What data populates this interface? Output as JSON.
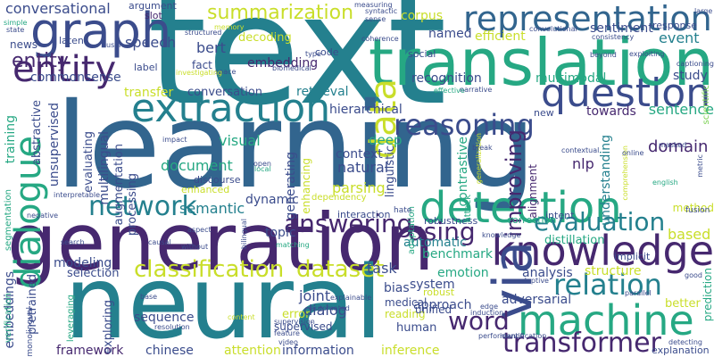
{
  "cloud": {
    "palette": {
      "purple": "#46286f",
      "indigo": "#3b4c8c",
      "blue": "#32658e",
      "teal": "#24808e",
      "green": "#26a883",
      "lime": "#7ad151",
      "yellow": "#c9de2a"
    },
    "words": [
      {
        "text": "text",
        "color": "#24808e"
      },
      {
        "text": "learning",
        "color": "#32658e"
      },
      {
        "text": "generation",
        "color": "#46286f"
      },
      {
        "text": "neural",
        "color": "#24808e"
      },
      {
        "text": "translation",
        "color": "#26a883"
      },
      {
        "text": "graph",
        "color": "#3b4c8c"
      },
      {
        "text": "entity",
        "color": "#46286f"
      },
      {
        "text": "dialogue",
        "color": "#26a883"
      },
      {
        "text": "extraction",
        "color": "#24808e"
      },
      {
        "text": "representation",
        "color": "#32658e"
      },
      {
        "text": "question",
        "color": "#3b4c8c"
      },
      {
        "text": "knowledge",
        "color": "#46286f"
      },
      {
        "text": "detection",
        "color": "#26a883"
      },
      {
        "text": "machine",
        "color": "#26a883"
      },
      {
        "text": "via",
        "color": "#3b4c8c"
      },
      {
        "text": "data",
        "color": "#c9de2a"
      },
      {
        "text": "network",
        "color": "#24808e"
      },
      {
        "text": "classification",
        "color": "#c9de2a"
      },
      {
        "text": "dataset",
        "color": "#c9de2a"
      },
      {
        "text": "relation",
        "color": "#24808e"
      },
      {
        "text": "transformer",
        "color": "#46286f"
      },
      {
        "text": "summarization",
        "color": "#c9de2a"
      },
      {
        "text": "reasoning",
        "color": "#3b4c8c"
      },
      {
        "text": "answering",
        "color": "#46286f"
      },
      {
        "text": "evaluation",
        "color": "#24808e"
      },
      {
        "text": "word",
        "color": "#46286f"
      },
      {
        "text": "using",
        "color": "#46286f"
      },
      {
        "text": "improving",
        "color": "#46286f"
      },
      {
        "text": "conversational",
        "color": "#3b4c8c"
      },
      {
        "text": "entity",
        "color": "#46286f"
      },
      {
        "text": "recognition",
        "color": "#3b4c8c"
      },
      {
        "text": "multimodal",
        "color": "#26a883"
      },
      {
        "text": "sentiment",
        "color": "#3b4c8c"
      },
      {
        "text": "event",
        "color": "#24808e"
      },
      {
        "text": "efficient",
        "color": "#c9de2a"
      },
      {
        "text": "named",
        "color": "#3b4c8c"
      },
      {
        "text": "corpus",
        "color": "#c9de2a"
      },
      {
        "text": "speech",
        "color": "#3b4c8c"
      },
      {
        "text": "bert",
        "color": "#3b4c8c"
      },
      {
        "text": "embedding",
        "color": "#46286f"
      },
      {
        "text": "fact",
        "color": "#3b4c8c"
      },
      {
        "text": "label",
        "color": "#3b4c8c"
      },
      {
        "text": "slot",
        "color": "#46286f"
      },
      {
        "text": "argument",
        "color": "#3b4c8c"
      },
      {
        "text": "decoding",
        "color": "#c9de2a"
      },
      {
        "text": "commonsense",
        "color": "#3b4c8c"
      },
      {
        "text": "transfer",
        "color": "#c9de2a"
      },
      {
        "text": "conversation",
        "color": "#3b4c8c"
      },
      {
        "text": "retrieval",
        "color": "#24808e"
      },
      {
        "text": "study",
        "color": "#3b4c8c"
      },
      {
        "text": "sentence",
        "color": "#26a883"
      },
      {
        "text": "hierarchical",
        "color": "#3b4c8c"
      },
      {
        "text": "towards",
        "color": "#46286f"
      },
      {
        "text": "visual",
        "color": "#26a883"
      },
      {
        "text": "deep",
        "color": "#26a883"
      },
      {
        "text": "context",
        "color": "#3b4c8c"
      },
      {
        "text": "natural",
        "color": "#3b4c8c"
      },
      {
        "text": "document",
        "color": "#26a883"
      },
      {
        "text": "nlp",
        "color": "#46286f"
      },
      {
        "text": "domain",
        "color": "#46286f"
      },
      {
        "text": "semantic",
        "color": "#24808e"
      },
      {
        "text": "dynamic",
        "color": "#3b4c8c"
      },
      {
        "text": "parsing",
        "color": "#c9de2a"
      },
      {
        "text": "topic",
        "color": "#3b4c8c"
      },
      {
        "text": "based",
        "color": "#c9de2a"
      },
      {
        "text": "modeling",
        "color": "#3b4c8c"
      },
      {
        "text": "benchmark",
        "color": "#26a883"
      },
      {
        "text": "automatic",
        "color": "#24808e"
      },
      {
        "text": "distillation",
        "color": "#26a883"
      },
      {
        "text": "task",
        "color": "#3b4c8c"
      },
      {
        "text": "analysis",
        "color": "#3b4c8c"
      },
      {
        "text": "structure",
        "color": "#c9de2a"
      },
      {
        "text": "emotion",
        "color": "#26a883"
      },
      {
        "text": "selection",
        "color": "#3b4c8c"
      },
      {
        "text": "system",
        "color": "#3b4c8c"
      },
      {
        "text": "adversarial",
        "color": "#3b4c8c"
      },
      {
        "text": "joint",
        "color": "#3b4c8c"
      },
      {
        "text": "bias",
        "color": "#3b4c8c"
      },
      {
        "text": "approach",
        "color": "#3b4c8c"
      },
      {
        "text": "error",
        "color": "#c9de2a"
      },
      {
        "text": "dialog",
        "color": "#3b4c8c"
      },
      {
        "text": "sequence",
        "color": "#3b4c8c"
      },
      {
        "text": "supervised",
        "color": "#3b4c8c"
      },
      {
        "text": "human",
        "color": "#3b4c8c"
      },
      {
        "text": "medical",
        "color": "#3b4c8c"
      },
      {
        "text": "reading",
        "color": "#c9de2a"
      },
      {
        "text": "framework",
        "color": "#46286f"
      },
      {
        "text": "chinese",
        "color": "#3b4c8c"
      },
      {
        "text": "attention",
        "color": "#c9de2a"
      },
      {
        "text": "information",
        "color": "#3b4c8c"
      },
      {
        "text": "inference",
        "color": "#c9de2a"
      },
      {
        "text": "better",
        "color": "#c9de2a"
      },
      {
        "text": "exploring",
        "color": "#3b4c8c"
      },
      {
        "text": "leveraging",
        "color": "#26a883"
      },
      {
        "text": "embeddings",
        "color": "#3b4c8c"
      },
      {
        "text": "pretrained",
        "color": "#3b4c8c"
      },
      {
        "text": "multilingual",
        "color": "#3b4c8c"
      },
      {
        "text": "augmentation",
        "color": "#3b4c8c"
      },
      {
        "text": "processing",
        "color": "#3b4c8c"
      },
      {
        "text": "evaluating",
        "color": "#3b4c8c"
      },
      {
        "text": "abstractive",
        "color": "#3b4c8c"
      },
      {
        "text": "unsupervised",
        "color": "#3b4c8c"
      },
      {
        "text": "training",
        "color": "#26a883"
      },
      {
        "text": "segmentation",
        "color": "#26a883"
      },
      {
        "text": "generating",
        "color": "#3b4c8c"
      },
      {
        "text": "enhancing",
        "color": "#c9de2a"
      },
      {
        "text": "linguistic",
        "color": "#3b4c8c"
      },
      {
        "text": "contrastive",
        "color": "#26a883"
      },
      {
        "text": "alignment",
        "color": "#46286f"
      },
      {
        "text": "understanding",
        "color": "#24808e"
      },
      {
        "text": "prediction",
        "color": "#26a883"
      },
      {
        "text": "method",
        "color": "#c9de2a"
      },
      {
        "text": "explanation",
        "color": "#3b4c8c"
      },
      {
        "text": "scientific",
        "color": "#7ad151"
      },
      {
        "text": "news",
        "color": "#3b4c8c"
      },
      {
        "text": "latent",
        "color": "#3b4c8c"
      },
      {
        "text": "code",
        "color": "#3b4c8c"
      },
      {
        "text": "social",
        "color": "#3b4c8c"
      },
      {
        "text": "response",
        "color": "#3b4c8c"
      },
      {
        "text": "new",
        "color": "#3b4c8c"
      },
      {
        "text": "intent",
        "color": "#3b4c8c"
      },
      {
        "text": "correction",
        "color": "#26a883"
      },
      {
        "text": "robustness",
        "color": "#3b4c8c"
      },
      {
        "text": "implicit",
        "color": "#3b4c8c"
      },
      {
        "text": "interaction",
        "color": "#3b4c8c"
      },
      {
        "text": "dependency",
        "color": "#c9de2a"
      },
      {
        "text": "discourse",
        "color": "#3b4c8c"
      },
      {
        "text": "enhanced",
        "color": "#c9de2a"
      },
      {
        "text": "robust",
        "color": "#c9de2a"
      },
      {
        "text": "unified",
        "color": "#3b4c8c"
      },
      {
        "text": "adaptation",
        "color": "#26a883"
      },
      {
        "text": "fusion",
        "color": "#3b4c8c"
      },
      {
        "text": "hate",
        "color": "#3b4c8c"
      },
      {
        "text": "attack",
        "color": "#26a883"
      },
      {
        "text": "generalization",
        "color": "#c9de2a"
      },
      {
        "text": "comprehension",
        "color": "#c9de2a"
      },
      {
        "text": "captioning",
        "color": "#3b4c8c"
      },
      {
        "text": "english",
        "color": "#26a883"
      },
      {
        "text": "masked",
        "color": "#3b4c8c"
      },
      {
        "text": "online",
        "color": "#3b4c8c"
      },
      {
        "text": "large",
        "color": "#3b4c8c"
      },
      {
        "text": "simple",
        "color": "#26a883"
      },
      {
        "text": "state",
        "color": "#3b4c8c"
      },
      {
        "text": "space",
        "color": "#3b4c8c"
      },
      {
        "text": "memory",
        "color": "#c9de2a"
      },
      {
        "text": "sense",
        "color": "#3b4c8c"
      },
      {
        "text": "syntactic",
        "color": "#3b4c8c"
      },
      {
        "text": "coherence",
        "color": "#3b4c8c"
      },
      {
        "text": "convolutional",
        "color": "#3b4c8c"
      },
      {
        "text": "consistency",
        "color": "#3b4c8c"
      },
      {
        "text": "user",
        "color": "#3b4c8c"
      },
      {
        "text": "biomedical",
        "color": "#3b4c8c"
      },
      {
        "text": "type",
        "color": "#3b4c8c"
      },
      {
        "text": "effective",
        "color": "#26a883"
      },
      {
        "text": "narrative",
        "color": "#3b4c8c"
      },
      {
        "text": "impact",
        "color": "#3b4c8c"
      },
      {
        "text": "open",
        "color": "#3b4c8c"
      },
      {
        "text": "local",
        "color": "#26a883"
      },
      {
        "text": "interpretable",
        "color": "#3b4c8c"
      },
      {
        "text": "negative",
        "color": "#3b4c8c"
      },
      {
        "text": "aspect",
        "color": "#3b4c8c"
      },
      {
        "text": "causal",
        "color": "#3b4c8c"
      },
      {
        "text": "search",
        "color": "#3b4c8c"
      },
      {
        "text": "without",
        "color": "#3b4c8c"
      },
      {
        "text": "bilingual",
        "color": "#3b4c8c"
      },
      {
        "text": "matching",
        "color": "#26a883"
      },
      {
        "text": "verification",
        "color": "#26a883"
      },
      {
        "text": "monolingual",
        "color": "#3b4c8c"
      },
      {
        "text": "base",
        "color": "#3b4c8c"
      },
      {
        "text": "content",
        "color": "#c9de2a"
      },
      {
        "text": "resolution",
        "color": "#3b4c8c"
      },
      {
        "text": "video",
        "color": "#3b4c8c"
      },
      {
        "text": "feature",
        "color": "#3b4c8c"
      },
      {
        "text": "automated",
        "color": "#3b4c8c"
      },
      {
        "text": "supervision",
        "color": "#3b4c8c"
      },
      {
        "text": "explainable",
        "color": "#3b4c8c"
      },
      {
        "text": "identification",
        "color": "#3b4c8c"
      },
      {
        "text": "induction",
        "color": "#3b4c8c"
      },
      {
        "text": "detecting",
        "color": "#3b4c8c"
      },
      {
        "text": "parallel",
        "color": "#3b4c8c"
      },
      {
        "text": "adaptive",
        "color": "#3b4c8c"
      },
      {
        "text": "good",
        "color": "#3b4c8c"
      },
      {
        "text": "beyond",
        "color": "#3b4c8c"
      },
      {
        "text": "exploiting",
        "color": "#3b4c8c"
      },
      {
        "text": "structured",
        "color": "#3b4c8c"
      },
      {
        "text": "investigating",
        "color": "#c9de2a"
      },
      {
        "text": "measuring",
        "color": "#3b4c8c"
      },
      {
        "text": "break",
        "color": "#3b4c8c"
      },
      {
        "text": "contextual",
        "color": "#3b4c8c"
      },
      {
        "text": "metric",
        "color": "#3b4c8c"
      },
      {
        "text": "performance",
        "color": "#3b4c8c"
      },
      {
        "text": "knowledge",
        "color": "#3b4c8c"
      },
      {
        "text": "edge",
        "color": "#3b4c8c"
      }
    ]
  }
}
